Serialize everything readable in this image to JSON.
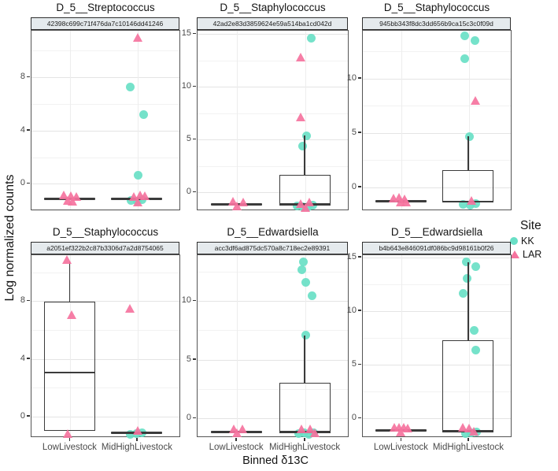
{
  "page": {
    "ylabel": "Log normalized counts",
    "xlabel": "Binned δ13C",
    "legend": {
      "title": "Site",
      "entries": [
        {
          "label": "KK",
          "marker": "circle",
          "color": "#69DFC6"
        },
        {
          "label": "LAR",
          "marker": "triangle",
          "color": "#F5739E"
        }
      ]
    }
  },
  "colors": {
    "kk_point": "#69DFC6",
    "lar_point": "#F5739E",
    "box_stroke": "#3B3B3B",
    "strip_bg": "#E5EAED",
    "grid_major": "#E4E4E4",
    "grid_minor": "#F2F2F2",
    "panel_border": "#555555"
  },
  "x_categories": [
    "LowLivestock",
    "MidHighLivestock"
  ],
  "chart_data": [
    {
      "type": "boxplot-jitter",
      "title": "D_5__Streptococcus",
      "strip": "42398c699c71f476da7c10146dd41246",
      "row": 0,
      "col": 0,
      "ylim": [
        -2.05,
        11.5
      ],
      "yticks": [
        0,
        4,
        8
      ],
      "groups": [
        {
          "category": "LowLivestock",
          "box": {
            "type": "flat",
            "median": -1.2
          },
          "points": [
            [
              "LAR",
              -0.95,
              -7
            ],
            [
              "LAR",
              -1.0,
              2
            ],
            [
              "LAR",
              -1.05,
              9
            ],
            [
              "LAR",
              -1.35,
              -2
            ],
            [
              "LAR",
              -1.4,
              4
            ]
          ]
        },
        {
          "category": "MidHighLivestock",
          "box": {
            "type": "flat",
            "median": -1.2
          },
          "points": [
            [
              "LAR",
              10.9,
              2
            ],
            [
              "KK",
              7.2,
              -8
            ],
            [
              "KK",
              5.15,
              9
            ],
            [
              "KK",
              0.6,
              2
            ],
            [
              "KK",
              -1.3,
              -7
            ],
            [
              "KK",
              -1.35,
              1
            ],
            [
              "KK",
              -1.25,
              7
            ],
            [
              "LAR",
              -0.95,
              5
            ],
            [
              "LAR",
              -1.0,
              11
            ],
            [
              "LAR",
              -1.45,
              2
            ],
            [
              "LAR",
              -1.05,
              -3
            ]
          ]
        }
      ]
    },
    {
      "type": "boxplot-jitter",
      "title": "D_5__Staphylococcus",
      "strip": "42ad2e83d3859624e59a514ba1cd042d",
      "row": 0,
      "col": 1,
      "ylim": [
        -1.75,
        15.3
      ],
      "yticks": [
        0,
        5,
        10,
        15
      ],
      "groups": [
        {
          "category": "LowLivestock",
          "box": {
            "type": "flat",
            "median": -1.2
          },
          "points": [
            [
              "LAR",
              -0.95,
              -4
            ],
            [
              "LAR",
              -1.0,
              9
            ],
            [
              "LAR",
              -1.35,
              1
            ]
          ]
        },
        {
          "category": "MidHighLivestock",
          "box": {
            "type": "box",
            "q1": -1.3,
            "median": -1.2,
            "q3": 1.6,
            "whisker_high": 5.3
          },
          "points": [
            [
              "KK",
              14.5,
              8
            ],
            [
              "LAR",
              12.7,
              -5
            ],
            [
              "LAR",
              7.0,
              -5
            ],
            [
              "KK",
              5.3,
              2
            ],
            [
              "KK",
              4.3,
              -3
            ],
            [
              "KK",
              -1.35,
              -10
            ],
            [
              "KK",
              -1.45,
              -3
            ],
            [
              "KK",
              -1.4,
              4
            ],
            [
              "KK",
              -1.3,
              10
            ],
            [
              "LAR",
              -1.0,
              6
            ],
            [
              "LAR",
              -1.5,
              1
            ],
            [
              "LAR",
              -1.15,
              -5
            ]
          ]
        }
      ]
    },
    {
      "type": "boxplot-jitter",
      "title": "D_5__Staphylococcus",
      "strip": "945bb343f8dc3dd656b9ca15c3c0f09d",
      "row": 0,
      "col": 2,
      "ylim": [
        -2.2,
        14.4
      ],
      "yticks": [
        0,
        5,
        10
      ],
      "groups": [
        {
          "category": "LowLivestock",
          "box": {
            "type": "flat",
            "median": -1.35
          },
          "points": [
            [
              "LAR",
              -1.1,
              -9
            ],
            [
              "LAR",
              -1.05,
              -2
            ],
            [
              "LAR",
              -1.15,
              5
            ],
            [
              "LAR",
              -1.45,
              0
            ],
            [
              "LAR",
              -1.5,
              7
            ]
          ]
        },
        {
          "category": "MidHighLivestock",
          "box": {
            "type": "box",
            "q1": -1.5,
            "median": -1.4,
            "q3": 1.5,
            "whisker_high": 4.6
          },
          "points": [
            [
              "KK",
              13.85,
              -4
            ],
            [
              "KK",
              13.4,
              9
            ],
            [
              "KK",
              11.75,
              -4
            ],
            [
              "LAR",
              7.9,
              10
            ],
            [
              "KK",
              4.6,
              2
            ],
            [
              "KK",
              -1.65,
              -6
            ],
            [
              "KK",
              -1.7,
              3
            ],
            [
              "KK",
              -1.55,
              10
            ],
            [
              "LAR",
              -1.35,
              5
            ]
          ]
        }
      ]
    },
    {
      "type": "boxplot-jitter",
      "title": "D_5__Staphylococcus",
      "strip": "a2051ef322b2c87b3306d7a2d8754065",
      "row": 1,
      "col": 0,
      "ylim": [
        -1.5,
        11.2
      ],
      "yticks": [
        0,
        4,
        8
      ],
      "groups": [
        {
          "category": "LowLivestock",
          "box": {
            "type": "box",
            "q1": -1.05,
            "median": 3.0,
            "q3": 7.9,
            "whisker_high": 10.7
          },
          "points": [
            [
              "LAR",
              10.8,
              -3
            ],
            [
              "LAR",
              7.0,
              3
            ],
            [
              "LAR",
              -1.3,
              -2
            ]
          ]
        },
        {
          "category": "MidHighLivestock",
          "box": {
            "type": "flat",
            "median": -1.2
          },
          "points": [
            [
              "LAR",
              7.4,
              -8
            ],
            [
              "KK",
              -1.3,
              -8
            ],
            [
              "KK",
              -1.25,
              0
            ],
            [
              "KK",
              -1.2,
              7
            ],
            [
              "LAR",
              -1.05,
              2
            ]
          ]
        }
      ]
    },
    {
      "type": "boxplot-jitter",
      "title": "D_5__Edwardsiella",
      "strip": "acc3df6ad875dc570a8c718ec2e89391",
      "row": 1,
      "col": 1,
      "ylim": [
        -1.65,
        13.9
      ],
      "yticks": [
        0,
        5,
        10
      ],
      "groups": [
        {
          "category": "LowLivestock",
          "box": {
            "type": "flat",
            "median": -1.2
          },
          "points": [
            [
              "LAR",
              -0.95,
              -3
            ],
            [
              "LAR",
              -1.0,
              8
            ],
            [
              "LAR",
              -1.3,
              1
            ]
          ]
        },
        {
          "category": "MidHighLivestock",
          "box": {
            "type": "box",
            "q1": -1.3,
            "median": -1.2,
            "q3": 3.0,
            "whisker_high": 7.0
          },
          "points": [
            [
              "KK",
              13.25,
              -2
            ],
            [
              "KK",
              12.6,
              -4
            ],
            [
              "KK",
              11.5,
              1
            ],
            [
              "KK",
              10.4,
              9
            ],
            [
              "KK",
              7.0,
              1
            ],
            [
              "KK",
              -1.35,
              -8
            ],
            [
              "KK",
              -1.3,
              -1
            ],
            [
              "KK",
              -1.4,
              5
            ],
            [
              "KK",
              -1.25,
              11
            ],
            [
              "LAR",
              -1.0,
              -4
            ],
            [
              "LAR",
              -0.95,
              7
            ],
            [
              "LAR",
              -1.3,
              13
            ]
          ]
        }
      ]
    },
    {
      "type": "boxplot-jitter",
      "title": "D_5__Edwardsiella",
      "strip": "b4b643e846091df086bc9d98161b0f26",
      "row": 1,
      "col": 2,
      "ylim": [
        -1.8,
        15.2
      ],
      "yticks": [
        0,
        5,
        10,
        15
      ],
      "groups": [
        {
          "category": "LowLivestock",
          "box": {
            "type": "flat",
            "median": -1.2
          },
          "points": [
            [
              "LAR",
              -0.95,
              -8
            ],
            [
              "LAR",
              -0.9,
              -2
            ],
            [
              "LAR",
              -0.95,
              4
            ],
            [
              "LAR",
              -1.0,
              9
            ],
            [
              "LAR",
              -1.35,
              0
            ]
          ]
        },
        {
          "category": "MidHighLivestock",
          "box": {
            "type": "box",
            "q1": -1.35,
            "median": -1.25,
            "q3": 7.2,
            "whisker_high": 14.5
          },
          "points": [
            [
              "KK",
              14.5,
              -2
            ],
            [
              "KK",
              14.1,
              10
            ],
            [
              "KK",
              13.0,
              -1
            ],
            [
              "KK",
              11.6,
              -6
            ],
            [
              "KK",
              8.1,
              8
            ],
            [
              "KK",
              6.3,
              10
            ],
            [
              "KK",
              -1.45,
              -3
            ],
            [
              "KK",
              -1.4,
              4
            ],
            [
              "KK",
              -1.35,
              11
            ],
            [
              "LAR",
              -0.95,
              -6
            ],
            [
              "LAR",
              -1.0,
              2
            ],
            [
              "LAR",
              -1.3,
              8
            ]
          ]
        }
      ]
    }
  ]
}
